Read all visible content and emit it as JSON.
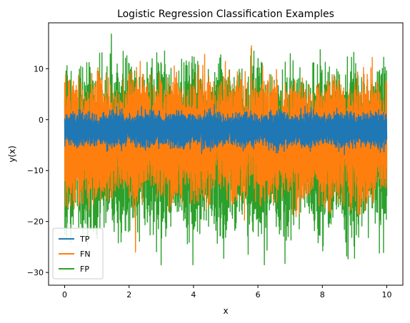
{
  "chart_data": {
    "type": "line",
    "title": "Logistic Regression Classification Examples",
    "xlabel": "x",
    "ylabel": "y(x)",
    "xlim": [
      -0.5,
      10.5
    ],
    "ylim": [
      -32.5,
      19
    ],
    "x_ticks": [
      0,
      2,
      4,
      6,
      8,
      10
    ],
    "y_ticks": [
      10,
      0,
      -10,
      -20,
      -30
    ],
    "grid": false,
    "legend": "lower-left",
    "x_range": [
      0,
      10
    ],
    "series": [
      {
        "name": "TP",
        "color": "#1f77b4",
        "center": -2.5,
        "typical_range": [
          -5.5,
          1.5
        ],
        "extreme_range": [
          -8,
          3
        ]
      },
      {
        "name": "FN",
        "color": "#ff7f0e",
        "typical_range": [
          -16,
          8
        ],
        "extreme_range": [
          -26,
          14.5
        ],
        "peaks": [
          {
            "x": 2.2,
            "y": -26
          },
          {
            "x": 5.8,
            "y": 14.5
          }
        ]
      },
      {
        "name": "FP",
        "color": "#2ca02c",
        "typical_range": [
          -22,
          10
        ],
        "extreme_range": [
          -28.5,
          16.8
        ],
        "peaks": [
          {
            "x": 1.45,
            "y": 16.8
          },
          {
            "x": 6.2,
            "y": -28.5
          },
          {
            "x": 9.0,
            "y": -27.2
          }
        ]
      }
    ]
  }
}
